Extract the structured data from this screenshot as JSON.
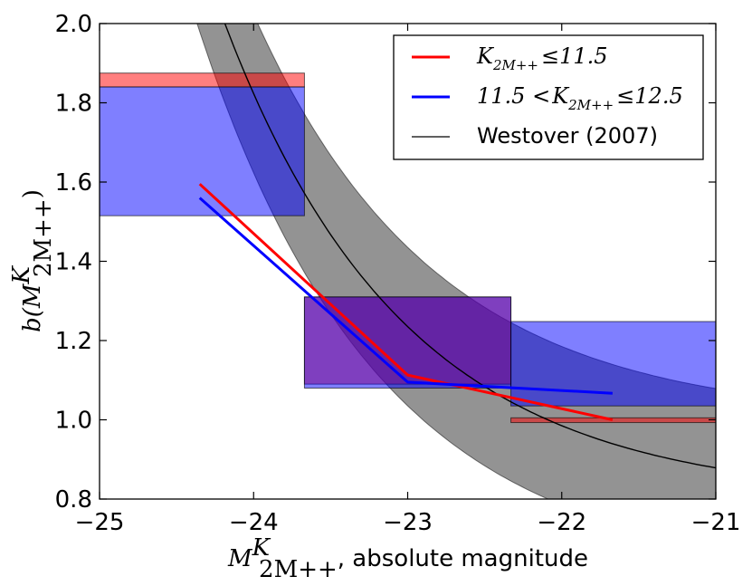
{
  "chart_data": {
    "type": "line",
    "xlabel_math": "M",
    "xlabel_math_sup": "K",
    "xlabel_math_sub": "2M++",
    "xlabel_text": ", absolute magnitude",
    "ylabel_math": "b(M",
    "ylabel_math_sup": "K",
    "ylabel_math_sub": "2M++",
    "ylabel_close": ")",
    "xlim": [
      -25,
      -21
    ],
    "ylim": [
      0.8,
      2.0
    ],
    "xticks": [
      -25,
      -24,
      -23,
      -22,
      -21
    ],
    "xtick_labels": [
      "−25",
      "−24",
      "−23",
      "−22",
      "−21"
    ],
    "yticks": [
      0.8,
      1.0,
      1.2,
      1.4,
      1.6,
      1.8,
      2.0
    ],
    "ytick_labels": [
      "0.8",
      "1.0",
      "1.2",
      "1.4",
      "1.6",
      "1.8",
      "2.0"
    ],
    "legend_position": "top-right",
    "series": [
      {
        "name": "K_2M++ ≤ 11.5",
        "legend_main": "K",
        "legend_sub": "2M++",
        "legend_rest": "≤11.5",
        "color": "#ff0000",
        "x": [
          -24.35,
          -23.0,
          -21.67
        ],
        "y": [
          1.595,
          1.113,
          1.0
        ],
        "boxes": [
          {
            "x0": -25.0,
            "x1": -23.67,
            "y0": 1.84,
            "y1": 1.875
          },
          {
            "x0": -23.67,
            "x1": -22.33,
            "y0": 1.09,
            "y1": 1.31
          },
          {
            "x0": -22.33,
            "x1": -21.0,
            "y0": 0.993,
            "y1": 1.005
          }
        ]
      },
      {
        "name": "11.5 < K_2M++ ≤ 12.5",
        "legend_pre": "11.5 <",
        "legend_main": "K",
        "legend_sub": "2M++",
        "legend_rest": "≤12.5",
        "color": "#0000ff",
        "x": [
          -24.35,
          -23.0,
          -21.67
        ],
        "y": [
          1.56,
          1.095,
          1.067
        ],
        "boxes": [
          {
            "x0": -25.0,
            "x1": -23.67,
            "y0": 1.515,
            "y1": 1.84
          },
          {
            "x0": -23.67,
            "x1": -22.33,
            "y0": 1.08,
            "y1": 1.31
          },
          {
            "x0": -22.33,
            "x1": -21.0,
            "y0": 1.035,
            "y1": 1.248
          }
        ]
      },
      {
        "name": "Westover (2007)",
        "legend_label": "Westover (2007)",
        "color": "#000000",
        "model": "b = a + c·exp(-(M - m0)/s)",
        "params": {
          "a": 0.8,
          "c": 0.17,
          "m0": -21.9,
          "s": 1.17
        },
        "band_halfwidth": 0.2
      }
    ],
    "colors": {
      "band_fill": "#808080",
      "red_fill": "#ff0000",
      "blue_fill": "#0000ff",
      "purple_fill": "#7f00bf"
    }
  }
}
